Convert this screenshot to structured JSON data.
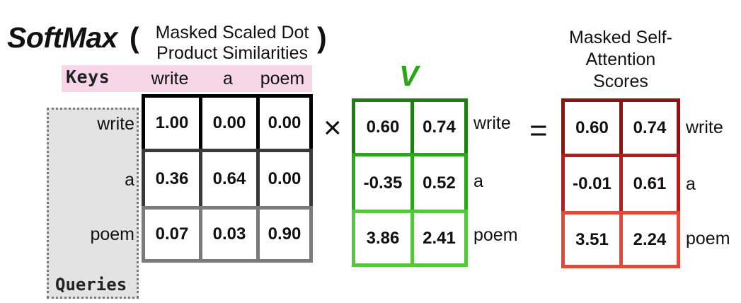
{
  "title": {
    "softmax": "SoftMax",
    "open_paren": "(",
    "close_paren": ")",
    "caption_line1": "Masked Scaled Dot",
    "caption_line2": "Product Similarities"
  },
  "keys_tag": "Keys",
  "queries_tag": "Queries",
  "keys": [
    "write",
    "a",
    "poem"
  ],
  "queries": [
    "write",
    "a",
    "poem"
  ],
  "softmax_matrix": [
    [
      "1.00",
      "0.00",
      "0.00"
    ],
    [
      "0.36",
      "0.64",
      "0.00"
    ],
    [
      "0.07",
      "0.03",
      "0.90"
    ]
  ],
  "operators": {
    "times": "×",
    "equals": "="
  },
  "v_matrix": {
    "label": "V",
    "rows": [
      [
        "0.60",
        "0.74"
      ],
      [
        "-0.35",
        "0.52"
      ],
      [
        "3.86",
        "2.41"
      ]
    ],
    "row_labels": [
      "write",
      "a",
      "poem"
    ]
  },
  "result_matrix": {
    "caption_line1": "Masked Self-",
    "caption_line2": "Attention",
    "caption_line3": "Scores",
    "rows": [
      [
        "0.60",
        "0.74"
      ],
      [
        "-0.01",
        "0.61"
      ],
      [
        "3.51",
        "2.24"
      ]
    ],
    "row_labels": [
      "write",
      "a",
      "poem"
    ]
  },
  "colors": {
    "softmax_rows": [
      "#000000",
      "#3a3a3a",
      "#7b7b7b"
    ],
    "v_rows": [
      "#1f7d14",
      "#2ea51e",
      "#57c540"
    ],
    "result_rows": [
      "#8c1414",
      "#b81c1c",
      "#e04a3a"
    ],
    "keys_band": "#f6d6e8",
    "queries_box": "#e3e3e3",
    "v_label": "#2fa31c"
  }
}
